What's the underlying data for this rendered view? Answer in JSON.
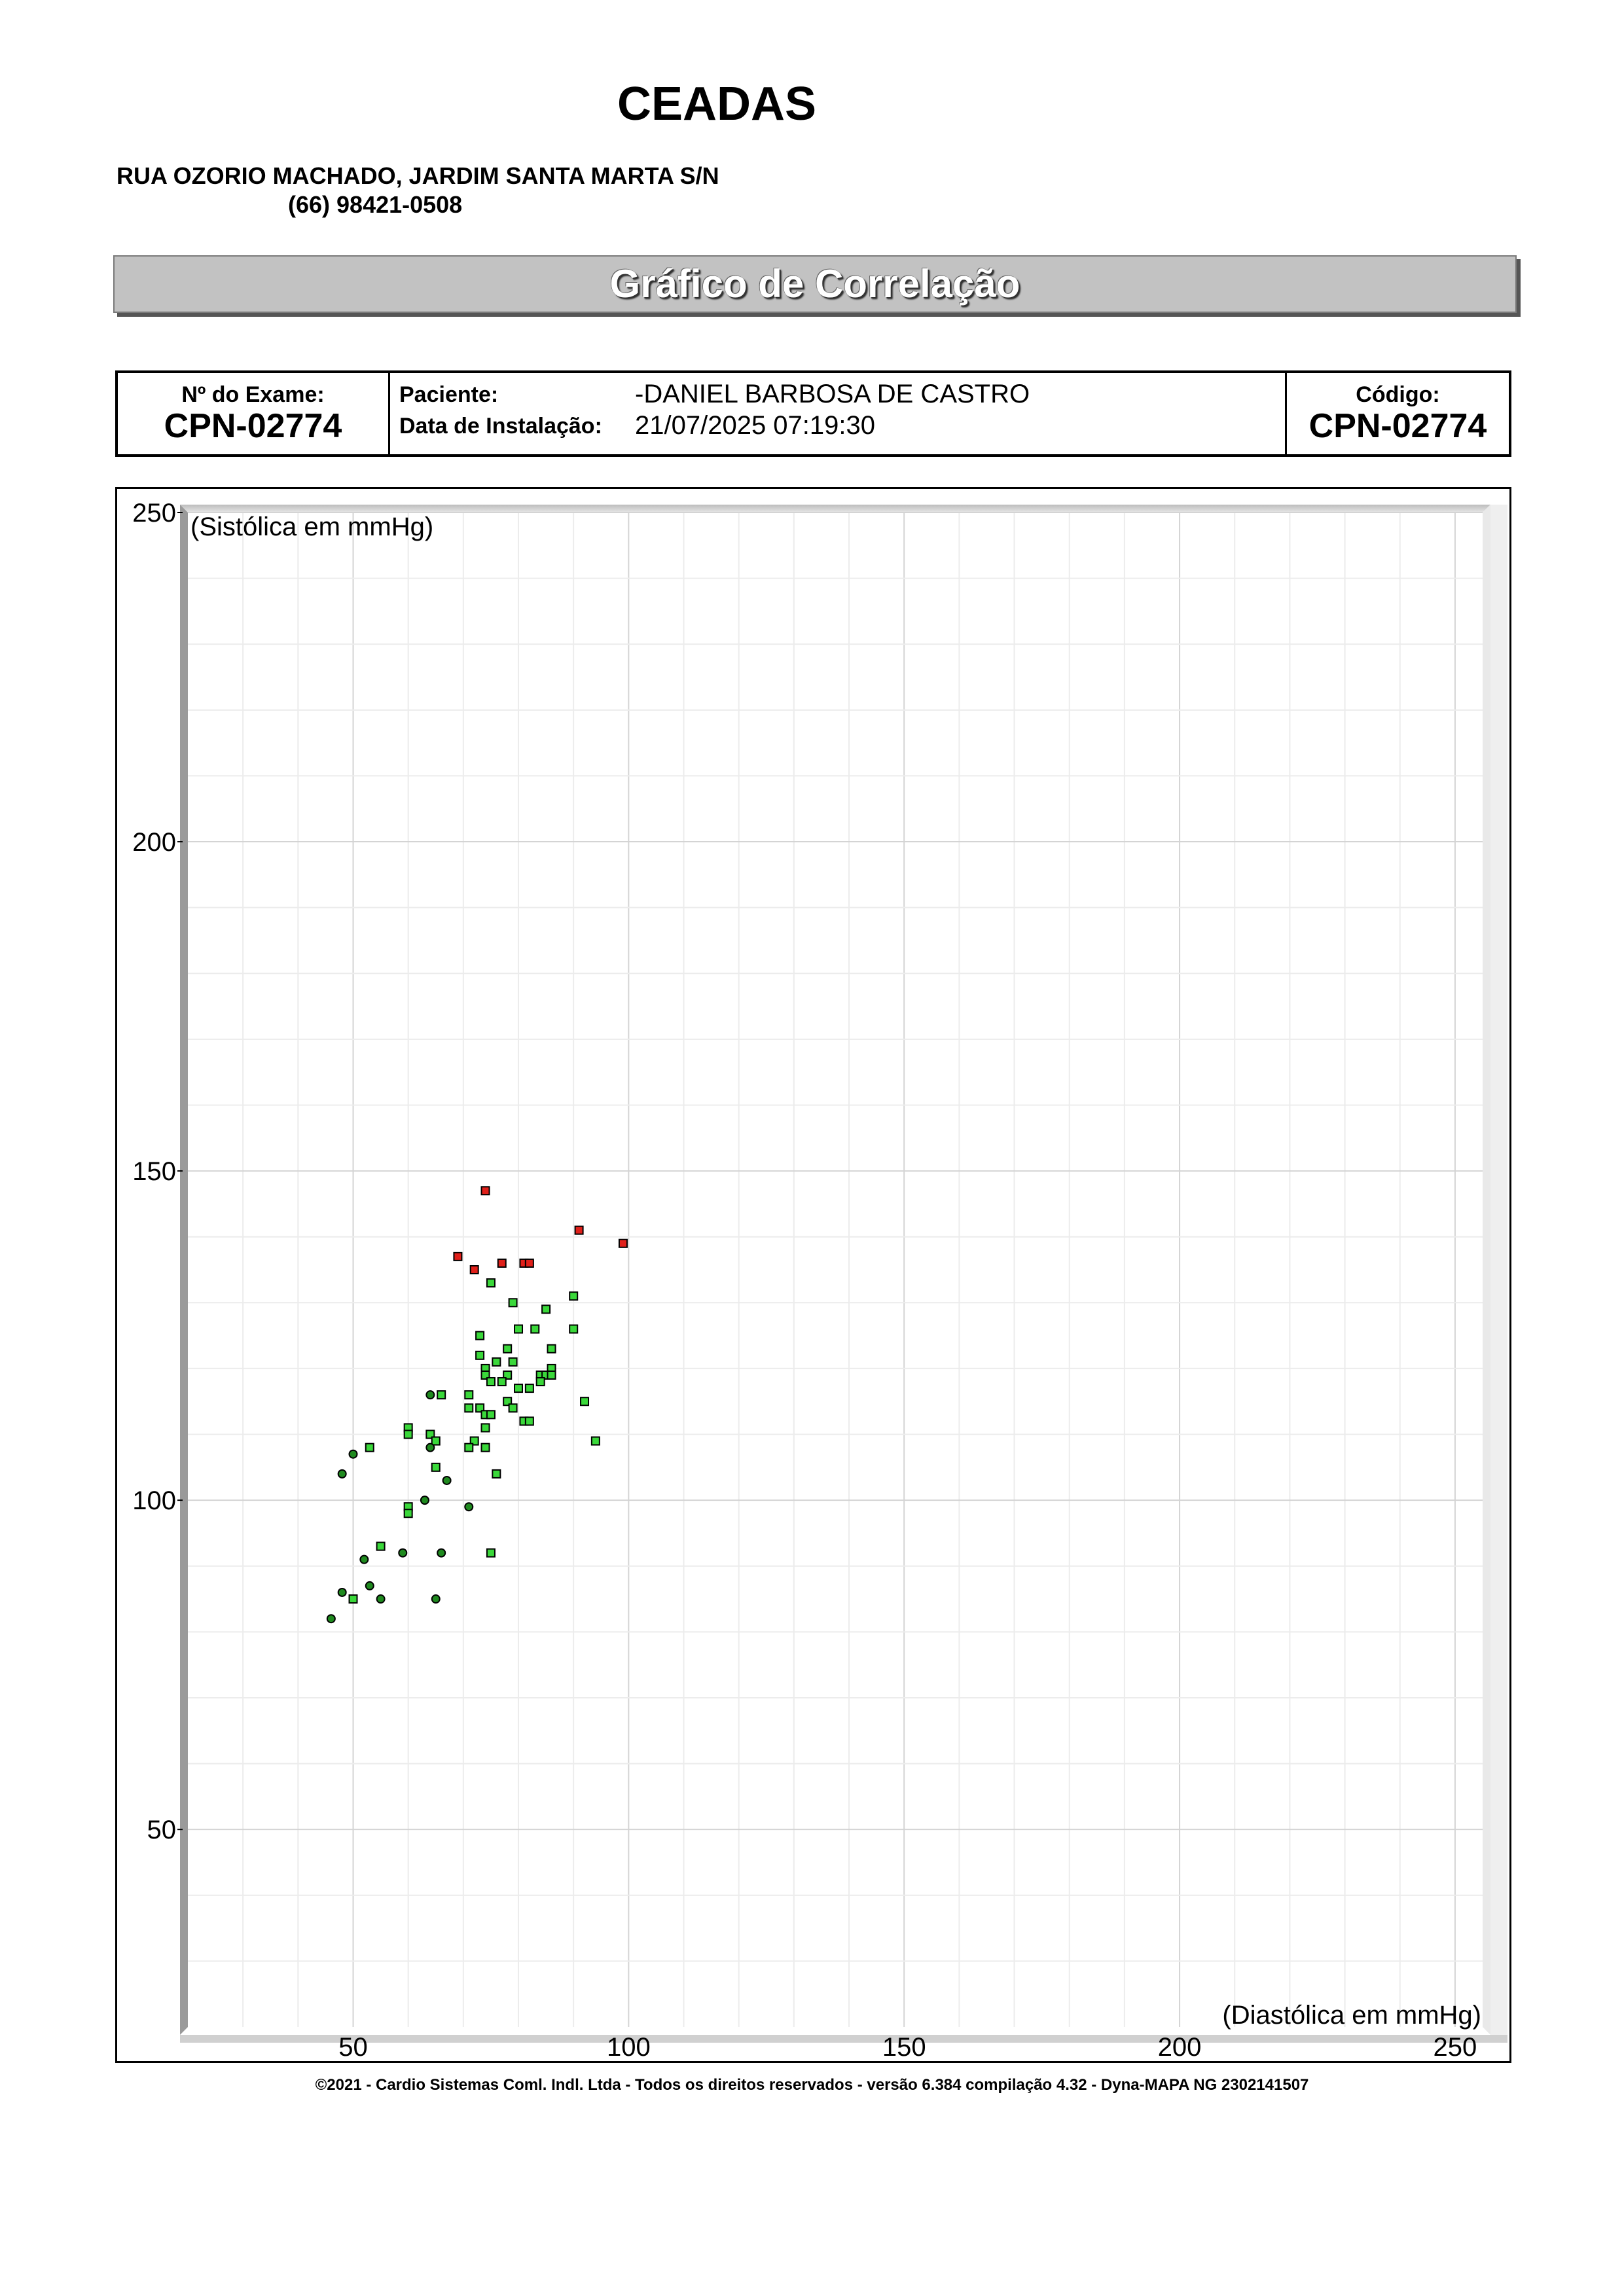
{
  "header": {
    "clinic_name": "CEADAS",
    "address": "RUA OZORIO MACHADO, JARDIM SANTA MARTA S/N",
    "phone": "(66) 98421-0508",
    "banner_title": "Gráfico de Correlação"
  },
  "exam_info": {
    "exam_label": "Nº do Exame:",
    "exam_number": "CPN-02774",
    "patient_label": "Paciente:",
    "patient_name": "-DANIEL BARBOSA DE  CASTRO",
    "install_label": "Data de Instalação:",
    "install_date": "21/07/2025 07:19:30",
    "code_label": "Código:",
    "code_value": "CPN-02774"
  },
  "chart_data": {
    "type": "scatter",
    "title": "",
    "xlabel": "(Diastólica em mmHg)",
    "ylabel": "(Sistólica em mmHg)",
    "xlim": [
      20,
      255
    ],
    "ylim": [
      20,
      250
    ],
    "x_ticks": [
      50,
      100,
      150,
      200,
      250
    ],
    "y_ticks": [
      50,
      100,
      150,
      200,
      250
    ],
    "grid": true,
    "legend": "none",
    "series": [
      {
        "marker": "square",
        "color": "#e0201a",
        "points": [
          [
            74,
            147
          ],
          [
            91,
            141
          ],
          [
            99,
            139
          ],
          [
            69,
            137
          ],
          [
            77,
            136
          ],
          [
            81,
            136
          ],
          [
            82,
            136
          ],
          [
            72,
            135
          ]
        ]
      },
      {
        "marker": "square",
        "color": "#3ad83a",
        "points": [
          [
            75,
            133
          ],
          [
            90,
            131
          ],
          [
            79,
            130
          ],
          [
            85,
            129
          ],
          [
            80,
            126
          ],
          [
            83,
            126
          ],
          [
            90,
            126
          ],
          [
            73,
            125
          ],
          [
            78,
            123
          ],
          [
            86,
            123
          ],
          [
            73,
            122
          ],
          [
            76,
            121
          ],
          [
            79,
            121
          ],
          [
            74,
            120
          ],
          [
            86,
            120
          ],
          [
            74,
            119
          ],
          [
            78,
            119
          ],
          [
            84,
            119
          ],
          [
            85,
            119
          ],
          [
            86,
            119
          ],
          [
            75,
            118
          ],
          [
            77,
            118
          ],
          [
            84,
            118
          ],
          [
            80,
            117
          ],
          [
            82,
            117
          ],
          [
            71,
            116
          ],
          [
            66,
            116
          ],
          [
            78,
            115
          ],
          [
            92,
            115
          ],
          [
            71,
            114
          ],
          [
            73,
            114
          ],
          [
            79,
            114
          ],
          [
            74,
            113
          ],
          [
            75,
            113
          ],
          [
            81,
            112
          ],
          [
            82,
            112
          ],
          [
            74,
            111
          ],
          [
            60,
            111
          ],
          [
            60,
            110
          ],
          [
            64,
            110
          ],
          [
            72,
            109
          ],
          [
            65,
            109
          ],
          [
            94,
            109
          ],
          [
            53,
            108
          ],
          [
            71,
            108
          ],
          [
            74,
            108
          ],
          [
            65,
            105
          ],
          [
            76,
            104
          ],
          [
            60,
            99
          ],
          [
            60,
            98
          ],
          [
            55,
            93
          ],
          [
            75,
            92
          ],
          [
            50,
            85
          ]
        ]
      },
      {
        "marker": "circle",
        "color": "#1f8a1f",
        "points": [
          [
            64,
            116
          ],
          [
            50,
            107
          ],
          [
            64,
            108
          ],
          [
            48,
            104
          ],
          [
            67,
            103
          ],
          [
            63,
            100
          ],
          [
            71,
            99
          ],
          [
            59,
            92
          ],
          [
            66,
            92
          ],
          [
            52,
            91
          ],
          [
            53,
            87
          ],
          [
            48,
            86
          ],
          [
            55,
            85
          ],
          [
            65,
            85
          ],
          [
            46,
            82
          ]
        ]
      }
    ]
  },
  "footer": {
    "text": "©2021 - Cardio Sistemas Coml. Indl. Ltda - Todos os direitos reservados - versão 6.384 compilação 4.32 - Dyna-MAPA NG 2302141507"
  }
}
